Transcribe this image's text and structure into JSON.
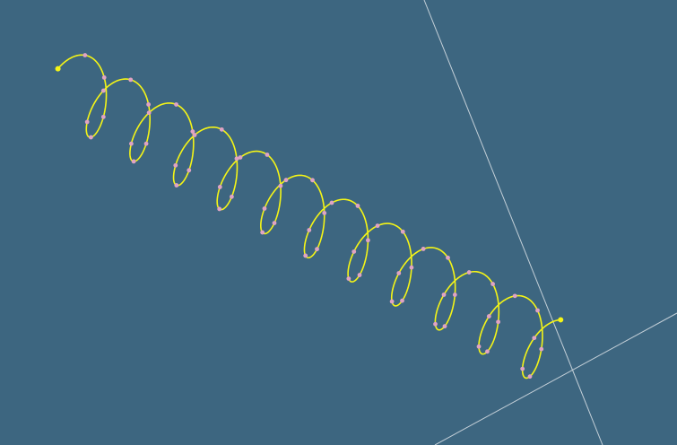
{
  "viewport": {
    "background": "#3d6680"
  },
  "colors": {
    "curve": "#f5f516",
    "control_point": "#e0a3c4",
    "endpoint": "#f5f516",
    "axis": "#c3cfd7"
  },
  "scene": {
    "helix_turns": 11,
    "control_points_per_turn": 6
  }
}
